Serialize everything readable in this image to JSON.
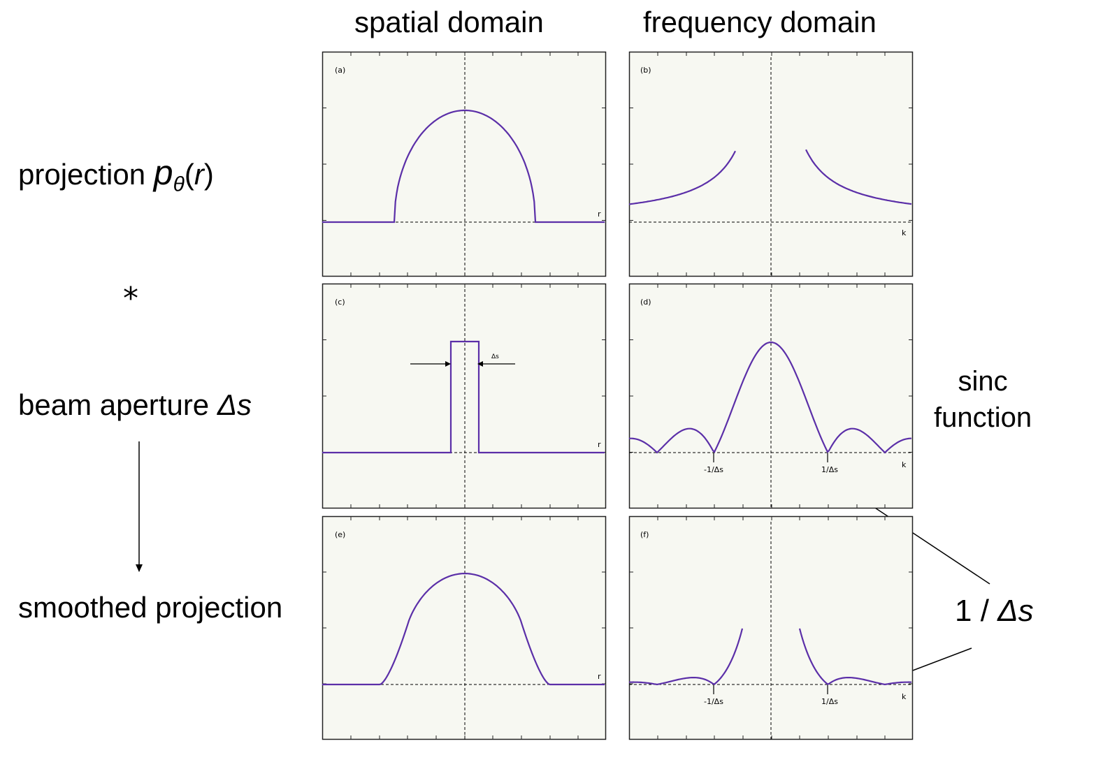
{
  "columns": {
    "spatial": "spatial domain",
    "frequency": "frequency domain"
  },
  "rows": {
    "projection": {
      "text": "projection ",
      "symbol": "p",
      "sub": "θ",
      "open": "(",
      "var": "r",
      "close": ")"
    },
    "convolution_symbol": "*",
    "beam": {
      "text": "beam aperture ",
      "symbol": "Δs"
    },
    "smoothed": {
      "text": "smoothed projection"
    }
  },
  "sinc_note": {
    "line1": "sinc",
    "line2": "function"
  },
  "inverse_label": {
    "prefix": "1 / ",
    "symbol": "Δs"
  },
  "panels": {
    "a": {
      "tag": "(a)",
      "axis_label": "r"
    },
    "b": {
      "tag": "(b)",
      "axis_label": "k"
    },
    "c": {
      "tag": "(c)",
      "axis_label": "r",
      "width_label": "Δs"
    },
    "d": {
      "tag": "(d)",
      "axis_label": "k",
      "tick_neg": "-1/Δs",
      "tick_pos": "1/Δs"
    },
    "e": {
      "tag": "(e)",
      "axis_label": "r"
    },
    "f": {
      "tag": "(f)",
      "axis_label": "k",
      "tick_neg": "-1/Δs",
      "tick_pos": "1/Δs"
    }
  },
  "colors": {
    "curve": "#5b2fa8",
    "panel_bg": "#f7f8f2",
    "frame": "#222222"
  }
}
